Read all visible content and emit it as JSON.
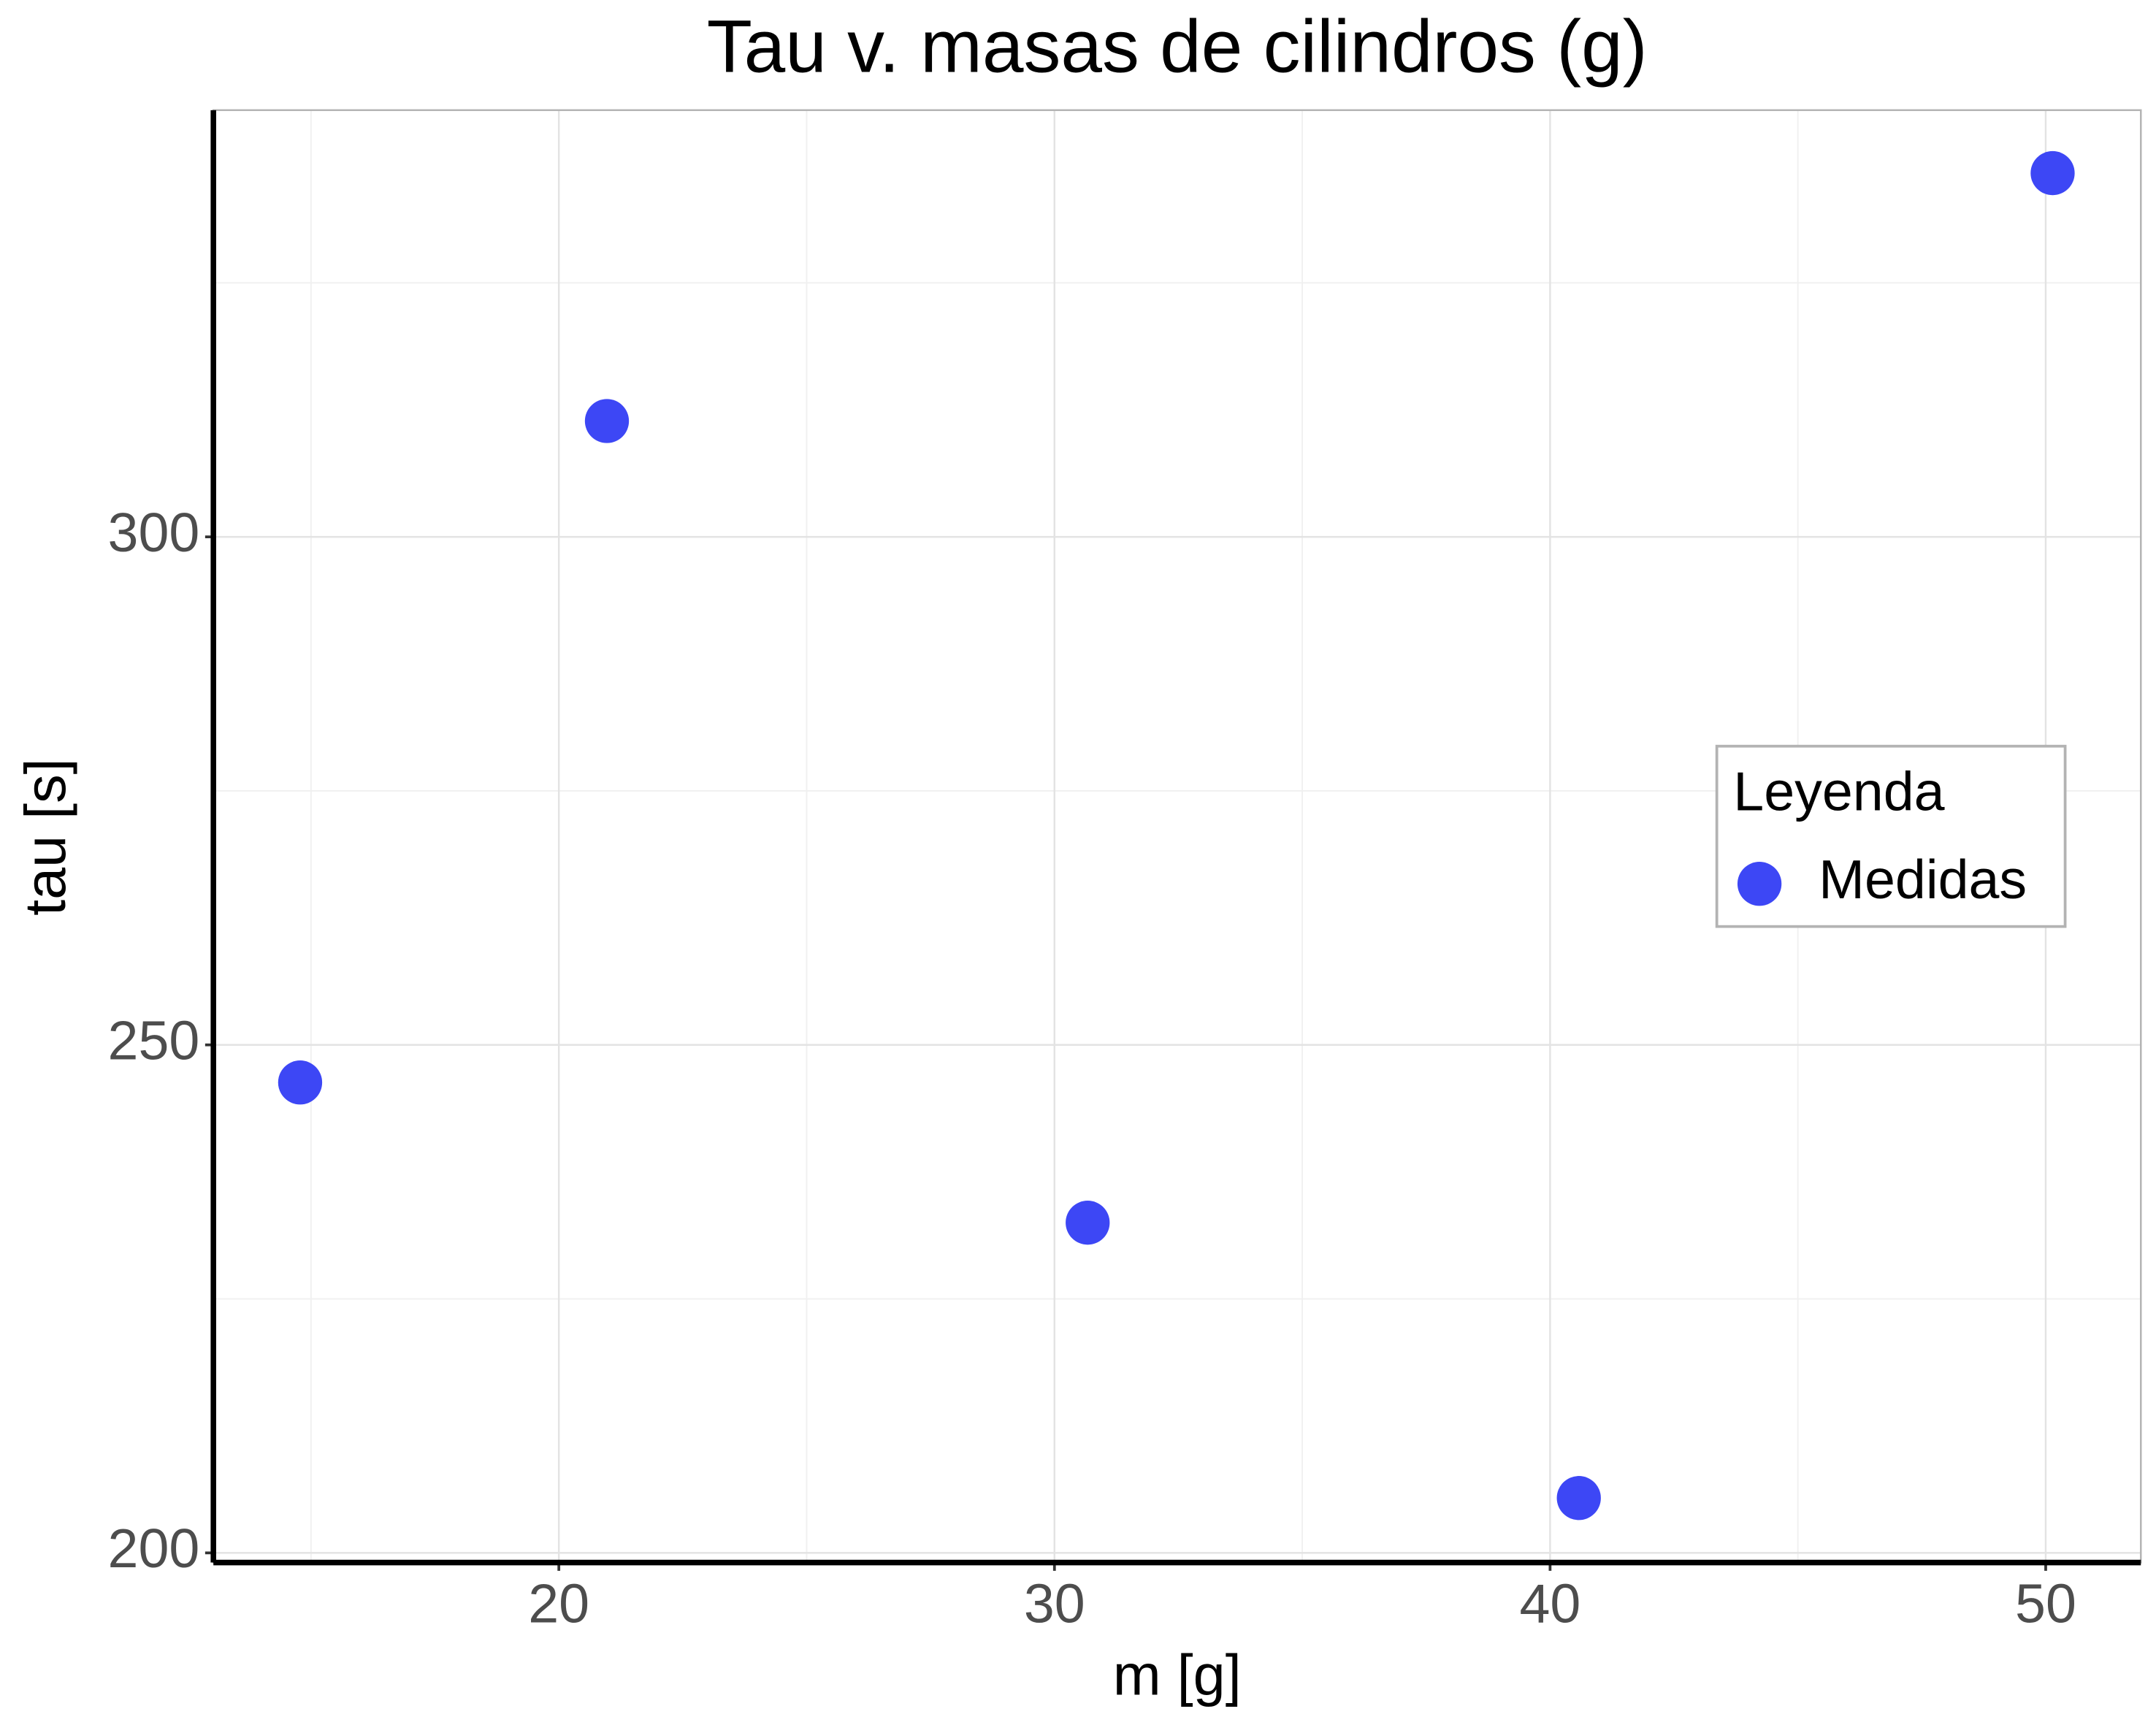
{
  "chart_data": {
    "type": "scatter",
    "title": "Tau v. masas de cilindros (g)",
    "x_label": "m [g]",
    "y_label": "tau [s]",
    "legend_title": "Leyenda",
    "legend_position": "right",
    "series": [
      {
        "name": "Medidas",
        "color": "#3d47f5",
        "x": [
          14.78,
          20.97,
          30.67,
          40.58,
          50.14
        ],
        "values": [
          246.3,
          311.4,
          232.5,
          205.4,
          335.8
        ]
      }
    ],
    "xlim": [
      13.03,
      51.92
    ],
    "xticks": [
      20,
      30,
      40,
      50
    ],
    "ylim": [
      199.05,
      342.0
    ],
    "yticks": [
      200,
      250,
      300
    ],
    "grid": true
  }
}
